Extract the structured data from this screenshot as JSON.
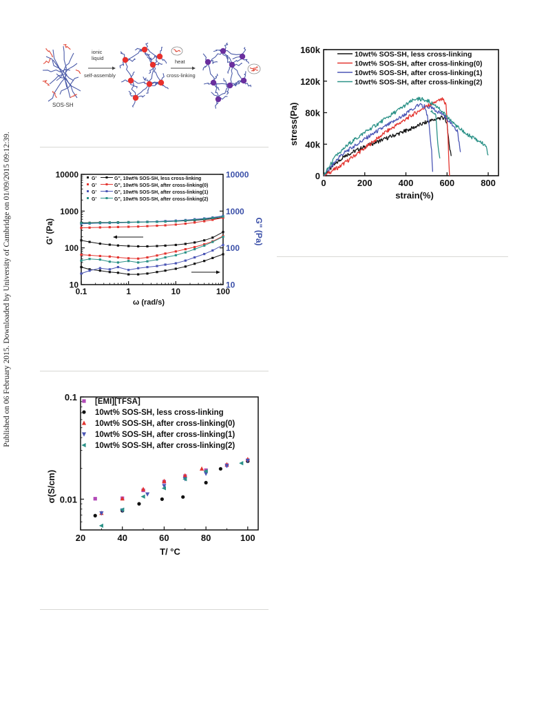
{
  "sidebar": {
    "published_text": "Published on 06 February 2015. Downloaded by University of Cambridge on 01/09/2015 09:12:39."
  },
  "scheme": {
    "label_sos": "SOS-SH",
    "label_ionic": [
      "ionic",
      "liquid",
      "self-assembly"
    ],
    "label_heat": [
      "heat",
      "cross-linking"
    ],
    "colors": {
      "chain": "#4a5aa8",
      "ionic_domain": "#e8302c",
      "crosslinked_domain": "#6a2f9e",
      "end_group": "#e24a3a"
    }
  },
  "chart_data": [
    {
      "type": "line",
      "title": "",
      "xlabel": "strain(%)",
      "ylabel": "stress(Pa)",
      "xlim": [
        0,
        850
      ],
      "ylim": [
        0,
        160000
      ],
      "xticks": [
        "0",
        "200",
        "400",
        "600",
        "800"
      ],
      "yticks": [
        "0",
        "40k",
        "80k",
        "120k",
        "160k"
      ],
      "legend_position": "top-left",
      "series": [
        {
          "name": "10wt% SOS-SH, less cross-linking",
          "color": "#111111",
          "x": [
            0,
            50,
            100,
            200,
            300,
            400,
            500,
            560,
            590,
            600,
            610,
            620
          ],
          "y": [
            0,
            13000,
            25000,
            37000,
            47000,
            57000,
            68000,
            73000,
            74000,
            65000,
            38000,
            25000
          ]
        },
        {
          "name": "10wt% SOS-SH, after cross-linking(0)",
          "color": "#e3342f",
          "x": [
            0,
            80,
            200,
            300,
            400,
            480,
            540,
            580,
            595,
            605,
            612
          ],
          "y": [
            0,
            12000,
            35000,
            55000,
            72000,
            85000,
            93000,
            97000,
            90000,
            45000,
            0
          ]
        },
        {
          "name": "10wt% SOS-SH, after cross-linking(1)",
          "color": "#4a55b5",
          "x": [
            0,
            80,
            150,
            250,
            350,
            420,
            460,
            490,
            510,
            525,
            530
          ],
          "y": [
            0,
            25000,
            38000,
            55000,
            70000,
            82000,
            90000,
            88000,
            70000,
            30000,
            5000
          ]
        },
        {
          "name": "10wt% SOS-SH, after cross-linking(2)",
          "color": "#2a9187",
          "x": [
            0,
            60,
            120,
            200,
            300,
            400,
            450,
            500,
            550,
            600,
            650,
            700,
            750,
            790,
            800
          ],
          "y": [
            0,
            25000,
            40000,
            55000,
            72000,
            90000,
            98000,
            96000,
            88000,
            75000,
            62000,
            52000,
            45000,
            38000,
            26000
          ]
        }
      ],
      "extra_traces": {
        "blue_tail": {
          "x": [
            500,
            540,
            580,
            620,
            650,
            665
          ],
          "y": [
            88000,
            84000,
            78000,
            66000,
            58000,
            30000
          ]
        },
        "teal_early_drop": {
          "x": [
            520,
            545,
            555,
            565
          ],
          "y": [
            82000,
            78000,
            40000,
            22000
          ]
        }
      }
    },
    {
      "type": "scatter",
      "title": "",
      "xlabel": "ω (rad/s)",
      "ylabel": "G' (Pa)",
      "ylabel_right": "G\" (Pa)",
      "xscale": "log",
      "yscale": "log",
      "xlim": [
        0.1,
        100
      ],
      "ylim": [
        10,
        10000
      ],
      "xticks": [
        "0.1",
        "1",
        "10",
        "100"
      ],
      "yticks": [
        "10",
        "100",
        "1000",
        "10000"
      ],
      "legend_position": "top",
      "arrows": {
        "upper": "pointing left toward G' axis",
        "lower": "pointing right toward G\" axis"
      },
      "series": [
        {
          "name": "G'",
          "name2": "G\", 10wt% SOS-SH, less cross-linking",
          "color": "#111111",
          "x": [
            0.1,
            0.15,
            0.25,
            0.4,
            0.6,
            1,
            1.6,
            2.5,
            4,
            6,
            10,
            16,
            25,
            40,
            60,
            100
          ],
          "gp": [
            480,
            480,
            490,
            490,
            495,
            500,
            505,
            510,
            515,
            520,
            530,
            545,
            565,
            590,
            620,
            670
          ],
          "gpp": [
            30,
            26,
            24,
            22,
            21,
            19,
            19,
            20,
            22,
            24,
            27,
            31,
            37,
            44,
            53,
            67
          ]
        },
        {
          "name": "G'",
          "name2": "G\", 10wt% SOS-SH, after cross-linking(0)",
          "color": "#e3342f",
          "x": [
            0.1,
            0.15,
            0.25,
            0.4,
            0.6,
            1,
            1.6,
            2.5,
            4,
            6,
            10,
            16,
            25,
            40,
            60,
            100
          ],
          "gp": [
            350,
            355,
            360,
            365,
            370,
            375,
            380,
            390,
            400,
            410,
            430,
            455,
            490,
            530,
            580,
            660
          ],
          "gpp": [
            65,
            63,
            60,
            58,
            55,
            52,
            51,
            55,
            62,
            70,
            80,
            92,
            105,
            125,
            150,
            210
          ]
        },
        {
          "name": "G'",
          "name2": "G\", 10wt% SOS-SH, after cross-linking(1)",
          "color": "#4a55b5",
          "x": [
            0.1,
            0.15,
            0.25,
            0.4,
            0.6,
            1,
            1.6,
            2.5,
            4,
            6,
            10,
            16,
            25,
            40,
            60,
            100
          ],
          "gp": [
            450,
            460,
            470,
            475,
            480,
            490,
            500,
            510,
            520,
            535,
            550,
            570,
            600,
            630,
            670,
            740
          ],
          "gpp": [
            20,
            24,
            28,
            26,
            30,
            25,
            28,
            30,
            32,
            35,
            38,
            45,
            55,
            68,
            85,
            120
          ]
        },
        {
          "name": "G'",
          "name2": "G\", 10wt% SOS-SH, after cross-linking(2)",
          "color": "#2a9187",
          "x": [
            0.1,
            0.15,
            0.25,
            0.4,
            0.6,
            1,
            1.6,
            2.5,
            4,
            6,
            10,
            16,
            25,
            40,
            60,
            100
          ],
          "gp": [
            470,
            470,
            480,
            485,
            490,
            495,
            500,
            505,
            510,
            520,
            535,
            555,
            580,
            610,
            650,
            710
          ],
          "gpp": [
            45,
            50,
            48,
            42,
            40,
            44,
            40,
            43,
            48,
            55,
            63,
            75,
            92,
            115,
            145,
            200
          ]
        },
        {
          "name": "",
          "name2": "less cross-linking G\" (upper curve)",
          "color": "#111111",
          "x": [
            0.1,
            0.15,
            0.25,
            0.4,
            0.6,
            1,
            1.6,
            2.5,
            4,
            6,
            10,
            16,
            25,
            40,
            60,
            100
          ],
          "gpp_upper": [
            160,
            145,
            130,
            122,
            116,
            112,
            110,
            110,
            112,
            115,
            120,
            128,
            140,
            160,
            190,
            270
          ]
        }
      ]
    },
    {
      "type": "scatter",
      "title": "",
      "xlabel": "T/ °C",
      "ylabel": "σ(S/cm)",
      "yscale": "log",
      "xlim": [
        20,
        105
      ],
      "ylim": [
        0.005,
        0.1
      ],
      "xticks": [
        "20",
        "40",
        "60",
        "80",
        "100"
      ],
      "yticks": [
        "0.01",
        "0.1"
      ],
      "legend_position": "top-left",
      "series": [
        {
          "name": "[EMI][TFSA]",
          "color": "#b24ab7",
          "marker": "square",
          "x": [
            27,
            40,
            50,
            60,
            70,
            80,
            90,
            100
          ],
          "y": [
            0.0101,
            0.0102,
            0.0122,
            0.0148,
            0.0168,
            0.0192,
            0.0215,
            0.024
          ]
        },
        {
          "name": "10wt% SOS-SH, less cross-linking",
          "color": "#111111",
          "marker": "circle",
          "x": [
            27,
            40,
            48,
            59,
            69,
            80,
            87,
            100
          ],
          "y": [
            0.0069,
            0.0077,
            0.009,
            0.01,
            0.0105,
            0.0145,
            0.0198,
            0.0235
          ]
        },
        {
          "name": "10wt% SOS-SH, after cross-linking(0)",
          "color": "#e3342f",
          "marker": "triangle-up",
          "x": [
            30,
            40,
            50,
            60,
            70,
            78,
            90,
            100
          ],
          "y": [
            0.0073,
            0.0101,
            0.0125,
            0.015,
            0.017,
            0.0198,
            0.0218,
            0.0245
          ]
        },
        {
          "name": "10wt% SOS-SH, after cross-linking(1)",
          "color": "#4a55b5",
          "marker": "triangle-down",
          "x": [
            30,
            40,
            52,
            60,
            70,
            80,
            90,
            100
          ],
          "y": [
            0.0073,
            0.0078,
            0.0112,
            0.0135,
            0.0158,
            0.0178,
            0.0212,
            0.0238
          ]
        },
        {
          "name": "10wt% SOS-SH, after cross-linking(2)",
          "color": "#2a9187",
          "marker": "triangle-left",
          "x": [
            30,
            40,
            50,
            60,
            70,
            80,
            97
          ],
          "y": [
            0.0055,
            0.0079,
            0.0106,
            0.0128,
            0.0157,
            0.0188,
            0.0225
          ]
        }
      ]
    }
  ]
}
